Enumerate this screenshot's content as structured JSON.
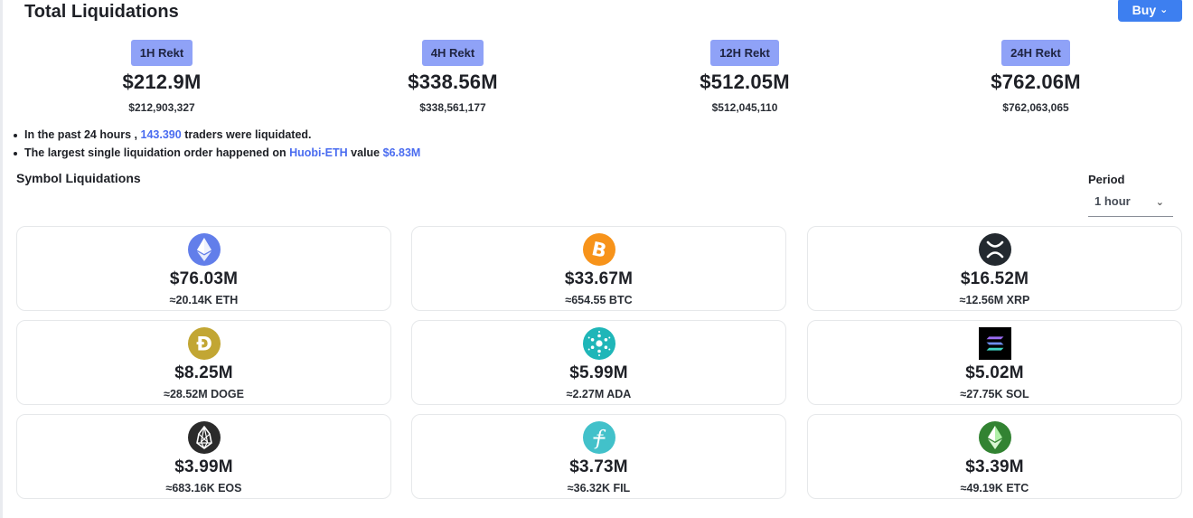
{
  "header": {
    "title": "Total Liquidations",
    "buy_label": "Buy"
  },
  "stats": [
    {
      "label": "1H Rekt",
      "value": "$212.9M",
      "exact": "$212,903,327"
    },
    {
      "label": "4H Rekt",
      "value": "$338.56M",
      "exact": "$338,561,177"
    },
    {
      "label": "12H Rekt",
      "value": "$512.05M",
      "exact": "$512,045,110"
    },
    {
      "label": "24H Rekt",
      "value": "$762.06M",
      "exact": "$762,063,065"
    }
  ],
  "notes": {
    "line1_prefix": "In the past 24 hours ,",
    "line1_count": "143.390",
    "line1_suffix": "traders were liquidated.",
    "line2_prefix": "The largest single liquidation order happened on",
    "line2_exchange": "Huobi-ETH",
    "line2_mid": "value",
    "line2_value": "$6.83M"
  },
  "symbols": {
    "title": "Symbol Liquidations",
    "period_label": "Period",
    "period_value": "1 hour",
    "cards": [
      {
        "value": "$76.03M",
        "qty": "≈20.14K ETH",
        "icon": "eth-icon"
      },
      {
        "value": "$33.67M",
        "qty": "≈654.55 BTC",
        "icon": "btc-icon"
      },
      {
        "value": "$16.52M",
        "qty": "≈12.56M XRP",
        "icon": "xrp-icon"
      },
      {
        "value": "$8.25M",
        "qty": "≈28.52M DOGE",
        "icon": "doge-icon"
      },
      {
        "value": "$5.99M",
        "qty": "≈2.27M ADA",
        "icon": "ada-icon"
      },
      {
        "value": "$5.02M",
        "qty": "≈27.75K SOL",
        "icon": "sol-icon"
      },
      {
        "value": "$3.99M",
        "qty": "≈683.16K EOS",
        "icon": "eos-icon"
      },
      {
        "value": "$3.73M",
        "qty": "≈36.32K FIL",
        "icon": "fil-icon"
      },
      {
        "value": "$3.39M",
        "qty": "≈49.19K ETC",
        "icon": "etc-icon"
      }
    ]
  },
  "colors": {
    "accent": "#3d7ff0",
    "badge": "#8fa2f7",
    "highlight": "#4a6cf0"
  }
}
